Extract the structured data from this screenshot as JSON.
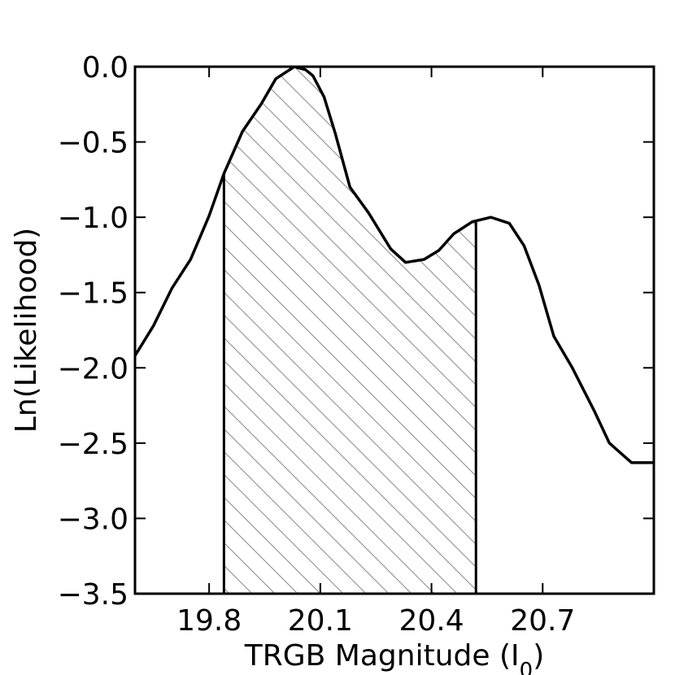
{
  "chart_data": {
    "type": "line",
    "xlabel": "TRGB Magnitude (I",
    "xlabel_subscript": "0",
    "xlabel_suffix": ")",
    "ylabel": "Ln(Likelihood)",
    "xlim": [
      19.6,
      21.0
    ],
    "ylim": [
      -3.5,
      0.0
    ],
    "xticks": [
      19.8,
      20.1,
      20.4,
      20.7
    ],
    "xtick_labels": [
      "19.8",
      "20.1",
      "20.4",
      "20.7"
    ],
    "yticks": [
      0.0,
      -0.5,
      -1.0,
      -1.5,
      -2.0,
      -2.5,
      -3.0,
      -3.5
    ],
    "ytick_labels": [
      "0.0",
      "−0.5",
      "−1.0",
      "−1.5",
      "−2.0",
      "−2.5",
      "−3.0",
      "−3.5"
    ],
    "grid": false,
    "series": [
      {
        "x": [
          19.6,
          19.65,
          19.7,
          19.75,
          19.8,
          19.84,
          19.89,
          19.94,
          19.98,
          20.03,
          20.06,
          20.08,
          20.11,
          20.14,
          20.18,
          20.23,
          20.29,
          20.33,
          20.38,
          20.42,
          20.46,
          20.51,
          20.56,
          20.61,
          20.65,
          20.69,
          20.73,
          20.78,
          20.84,
          20.88,
          20.94,
          21.0
        ],
        "y": [
          -1.92,
          -1.72,
          -1.47,
          -1.28,
          -0.99,
          -0.71,
          -0.43,
          -0.25,
          -0.08,
          0.0,
          -0.02,
          -0.06,
          -0.2,
          -0.44,
          -0.8,
          -0.97,
          -1.21,
          -1.3,
          -1.28,
          -1.22,
          -1.11,
          -1.03,
          -1.0,
          -1.04,
          -1.19,
          -1.45,
          -1.79,
          -2.0,
          -2.29,
          -2.5,
          -2.63,
          -2.63
        ]
      }
    ],
    "shaded_interval": [
      19.84,
      20.52
    ],
    "shading": "hatched"
  }
}
